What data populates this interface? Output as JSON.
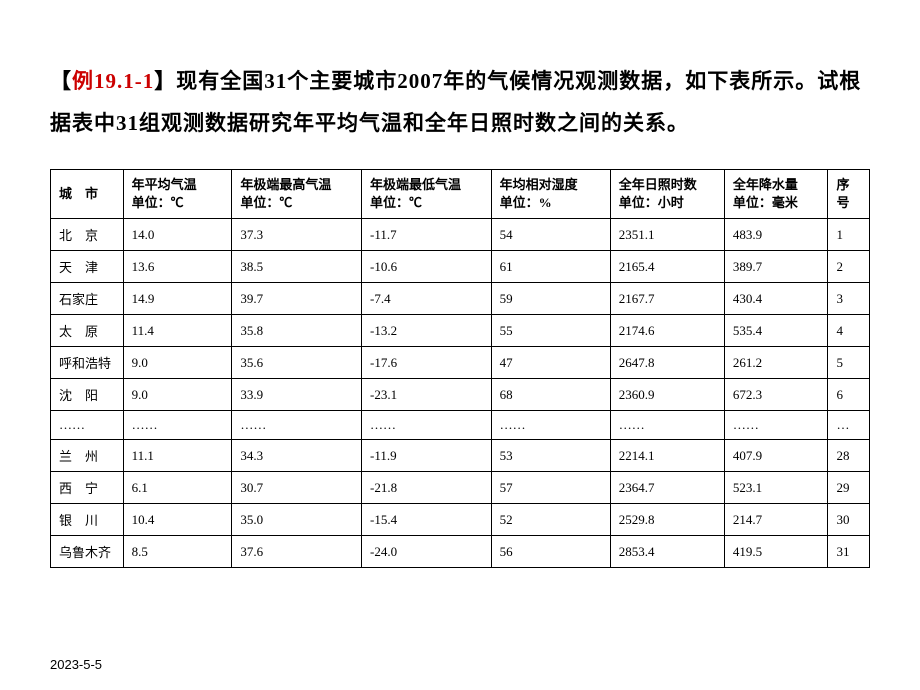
{
  "intro": {
    "bracket_open": "【",
    "example_label": "例19.1-1",
    "bracket_close": "】",
    "text_part1": "现有全国31个主要城市2007年的气候情况观测数据，如下表所示。试根据表中31组观测数据研究年平均气温和全年日照时数之间的关系。"
  },
  "table": {
    "columns": [
      {
        "key": "city",
        "line1": "城　市",
        "line2": ""
      },
      {
        "key": "avg_temp",
        "line1": "年平均气温",
        "line2": "单位：℃"
      },
      {
        "key": "max_temp",
        "line1": "年极端最高气温",
        "line2": "单位：℃"
      },
      {
        "key": "min_temp",
        "line1": "年极端最低气温",
        "line2": "单位：℃"
      },
      {
        "key": "humidity",
        "line1": "年均相对湿度",
        "line2": "单位：%"
      },
      {
        "key": "sunshine",
        "line1": "全年日照时数",
        "line2": "单位：小时"
      },
      {
        "key": "rainfall",
        "line1": "全年降水量",
        "line2": "单位：毫米"
      },
      {
        "key": "seq",
        "line1": "序",
        "line2": "号"
      }
    ],
    "rows": [
      {
        "city": "北　京",
        "avg_temp": "14.0",
        "max_temp": "37.3",
        "min_temp": "-11.7",
        "humidity": "54",
        "sunshine": "2351.1",
        "rainfall": "483.9",
        "seq": "1",
        "cls": "city-name"
      },
      {
        "city": "天　津",
        "avg_temp": "13.6",
        "max_temp": "38.5",
        "min_temp": "-10.6",
        "humidity": "61",
        "sunshine": "2165.4",
        "rainfall": "389.7",
        "seq": "2",
        "cls": "city-name"
      },
      {
        "city": "石家庄",
        "avg_temp": "14.9",
        "max_temp": "39.7",
        "min_temp": "-7.4",
        "humidity": "59",
        "sunshine": "2167.7",
        "rainfall": "430.4",
        "seq": "3",
        "cls": "city-name-3"
      },
      {
        "city": "太　原",
        "avg_temp": "11.4",
        "max_temp": "35.8",
        "min_temp": "-13.2",
        "humidity": "55",
        "sunshine": "2174.6",
        "rainfall": "535.4",
        "seq": "4",
        "cls": "city-name"
      },
      {
        "city": "呼和浩特",
        "avg_temp": "9.0",
        "max_temp": "35.6",
        "min_temp": "-17.6",
        "humidity": "47",
        "sunshine": "2647.8",
        "rainfall": "261.2",
        "seq": "5",
        "cls": "city-name-4"
      },
      {
        "city": "沈　阳",
        "avg_temp": "9.0",
        "max_temp": "33.9",
        "min_temp": "-23.1",
        "humidity": "68",
        "sunshine": "2360.9",
        "rainfall": "672.3",
        "seq": "6",
        "cls": "city-name"
      },
      {
        "city": "……",
        "avg_temp": "……",
        "max_temp": "……",
        "min_temp": "……",
        "humidity": "……",
        "sunshine": "……",
        "rainfall": "……",
        "seq": "…",
        "cls": ""
      },
      {
        "city": "兰　州",
        "avg_temp": "11.1",
        "max_temp": "34.3",
        "min_temp": "-11.9",
        "humidity": "53",
        "sunshine": "2214.1",
        "rainfall": "407.9",
        "seq": "28",
        "cls": "city-name"
      },
      {
        "city": "西　宁",
        "avg_temp": "6.1",
        "max_temp": "30.7",
        "min_temp": "-21.8",
        "humidity": "57",
        "sunshine": "2364.7",
        "rainfall": "523.1",
        "seq": "29",
        "cls": "city-name"
      },
      {
        "city": "银　川",
        "avg_temp": "10.4",
        "max_temp": "35.0",
        "min_temp": "-15.4",
        "humidity": "52",
        "sunshine": "2529.8",
        "rainfall": "214.7",
        "seq": "30",
        "cls": "city-name"
      },
      {
        "city": "乌鲁木齐",
        "avg_temp": "8.5",
        "max_temp": "37.6",
        "min_temp": "-24.0",
        "humidity": "56",
        "sunshine": "2853.4",
        "rainfall": "419.5",
        "seq": "31",
        "cls": "city-name-4"
      }
    ]
  },
  "footer": "2023-5-5",
  "colors": {
    "example_red": "#cc0000",
    "text_black": "#000000",
    "border": "#000000",
    "background": "#ffffff"
  },
  "typography": {
    "intro_fontsize": 21,
    "table_fontsize": 13,
    "footer_fontsize": 13
  }
}
